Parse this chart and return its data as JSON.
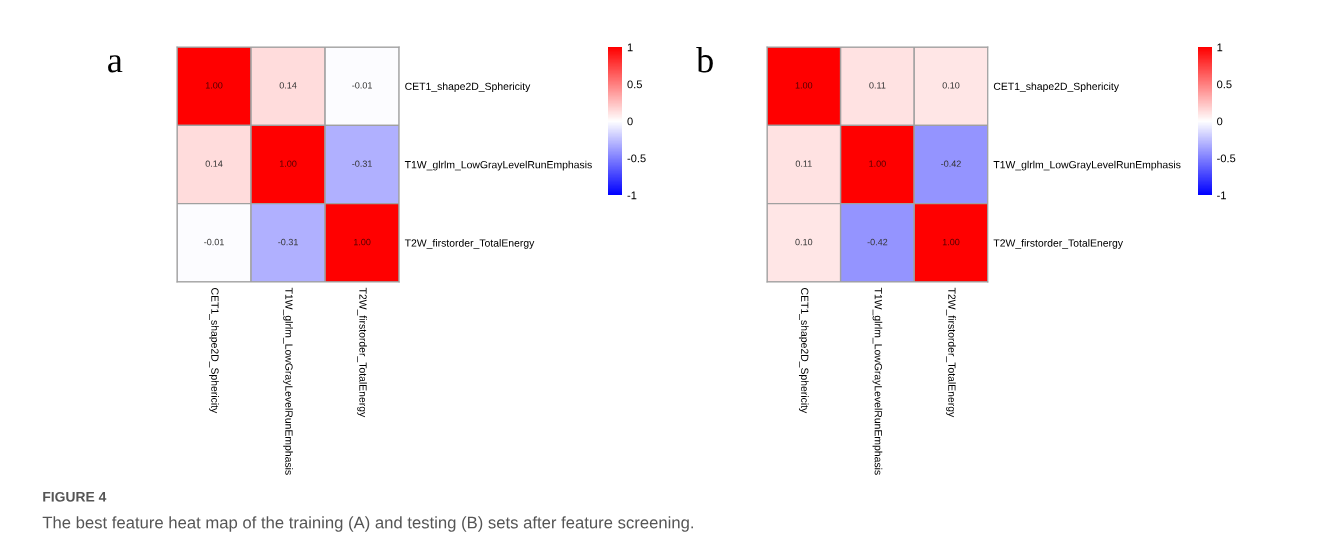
{
  "chart_data": [
    {
      "type": "heatmap",
      "title": "a",
      "categories": [
        "CET1_shape2D_Sphericity",
        "T1W_glrlm_LowGrayLevelRunEmphasis",
        "T2W_firstorder_TotalEnergy"
      ],
      "y_categories": [
        "CET1_shape2D_Sphericity",
        "T1W_glrlm_LowGrayLevelRunEmphasis",
        "T2W_firstorder_TotalEnergy"
      ],
      "cells": [
        [
          1.0,
          0.14,
          -0.01
        ],
        [
          0.14,
          1.0,
          -0.31
        ],
        [
          -0.01,
          -0.31,
          1.0
        ]
      ],
      "cell_labels": [
        [
          "1.00",
          "0.14",
          "-0.01"
        ],
        [
          "0.14",
          "1.00",
          "-0.31"
        ],
        [
          "-0.01",
          "-0.31",
          "1.00"
        ]
      ],
      "data_labels": true,
      "clim": [
        -1,
        1
      ],
      "cticks": [
        -1,
        -0.5,
        0,
        0.5,
        1
      ],
      "annotations": [
        "FIGURE 4",
        "The best feature heat map of the training (A) and testing (B) sets after feature screening."
      ]
    },
    {
      "type": "heatmap",
      "title": "b",
      "categories": [
        "CET1_shape2D_Sphericity",
        "T1W_glrlm_LowGrayLevelRunEmphasis",
        "T2W_firstorder_TotalEnergy"
      ],
      "y_categories": [
        "CET1_shape2D_Sphericity",
        "T1W_glrlm_LowGrayLevelRunEmphasis",
        "T2W_firstorder_TotalEnergy"
      ],
      "cells": [
        [
          1.0,
          0.11,
          0.1
        ],
        [
          0.11,
          1.0,
          -0.42
        ],
        [
          0.1,
          -0.42,
          1.0
        ]
      ],
      "cell_labels": [
        [
          "1.00",
          "0.11",
          "0.10"
        ],
        [
          "0.11",
          "1.00",
          "-0.42"
        ],
        [
          "0.10",
          "-0.42",
          "1.00"
        ]
      ],
      "data_labels": true,
      "clim": [
        -1,
        1
      ],
      "cticks": [
        -1,
        -0.5,
        0,
        0.5,
        1
      ]
    }
  ]
}
